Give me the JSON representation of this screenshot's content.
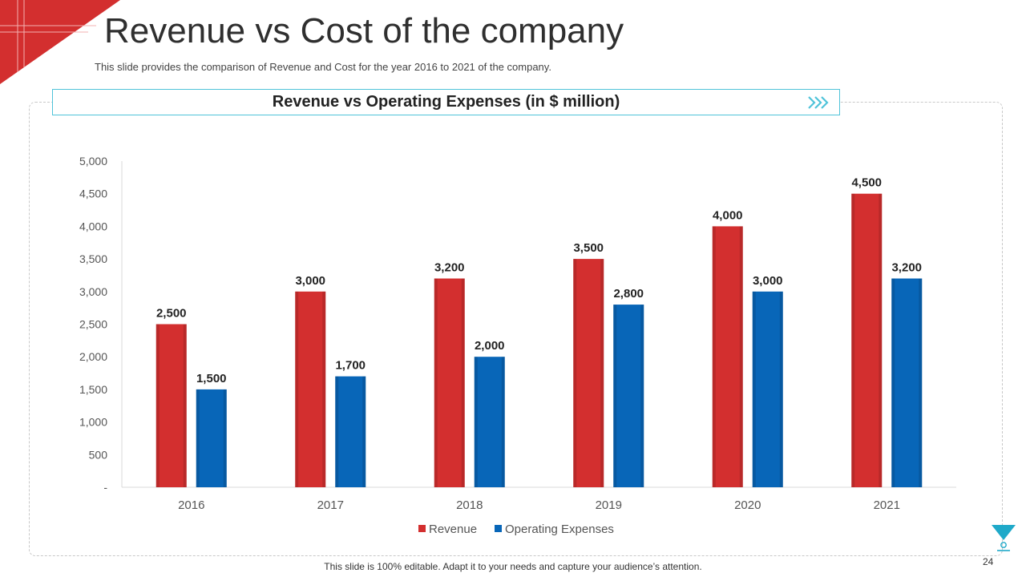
{
  "slide": {
    "title": "Revenue vs Cost of the company",
    "subtitle": "This slide provides the comparison of Revenue and Cost for the year 2016 to 2021 of the company.",
    "footer": "This slide is 100% editable. Adapt it to your needs and capture your audience’s attention.",
    "page_number": "24"
  },
  "colors": {
    "accent": "#d32f2f",
    "revenue": "#d32f2f",
    "expenses": "#0866b8",
    "header_border": "#4fc3d9"
  },
  "chart_data": {
    "type": "bar",
    "title": "Revenue vs Operating Expenses (in  $ million)",
    "categories": [
      "2016",
      "2017",
      "2018",
      "2019",
      "2020",
      "2021"
    ],
    "series": [
      {
        "name": "Revenue",
        "values": [
          2500,
          3000,
          3200,
          3500,
          4000,
          4500
        ],
        "labels": [
          "2,500",
          "3,000",
          "3,200",
          "3,500",
          "4,000",
          "4,500"
        ]
      },
      {
        "name": "Operating Expenses",
        "values": [
          1500,
          1700,
          2000,
          2800,
          3000,
          3200
        ],
        "labels": [
          "1,500",
          "1,700",
          "2,000",
          "2,800",
          "3,000",
          "3,200"
        ]
      }
    ],
    "ylim": [
      0,
      5000
    ],
    "yticks": [
      0,
      500,
      1000,
      1500,
      2000,
      2500,
      3000,
      3500,
      4000,
      4500,
      5000
    ],
    "ytick_labels": [
      "-",
      "500",
      "1,000",
      "1,500",
      "2,000",
      "2,500",
      "3,000",
      "3,500",
      "4,000",
      "4,500",
      "5,000"
    ],
    "xlabel": "",
    "ylabel": "",
    "legend": "bottom-center",
    "grid": false
  }
}
